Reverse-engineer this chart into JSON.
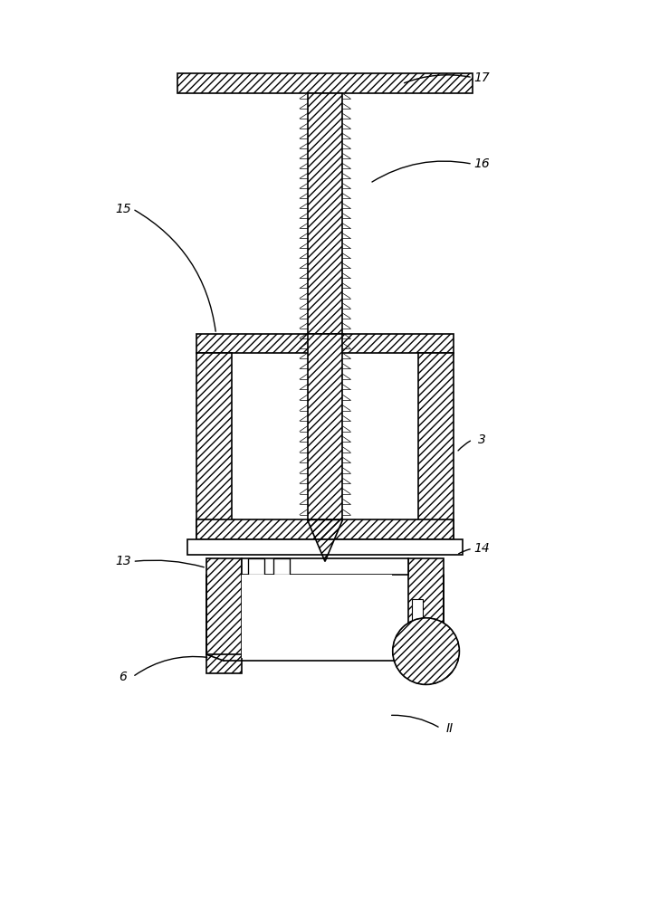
{
  "bg_color": "#ffffff",
  "line_color": "#000000",
  "fig_width": 7.18,
  "fig_height": 10.0,
  "hatch": "////",
  "lw": 1.2
}
